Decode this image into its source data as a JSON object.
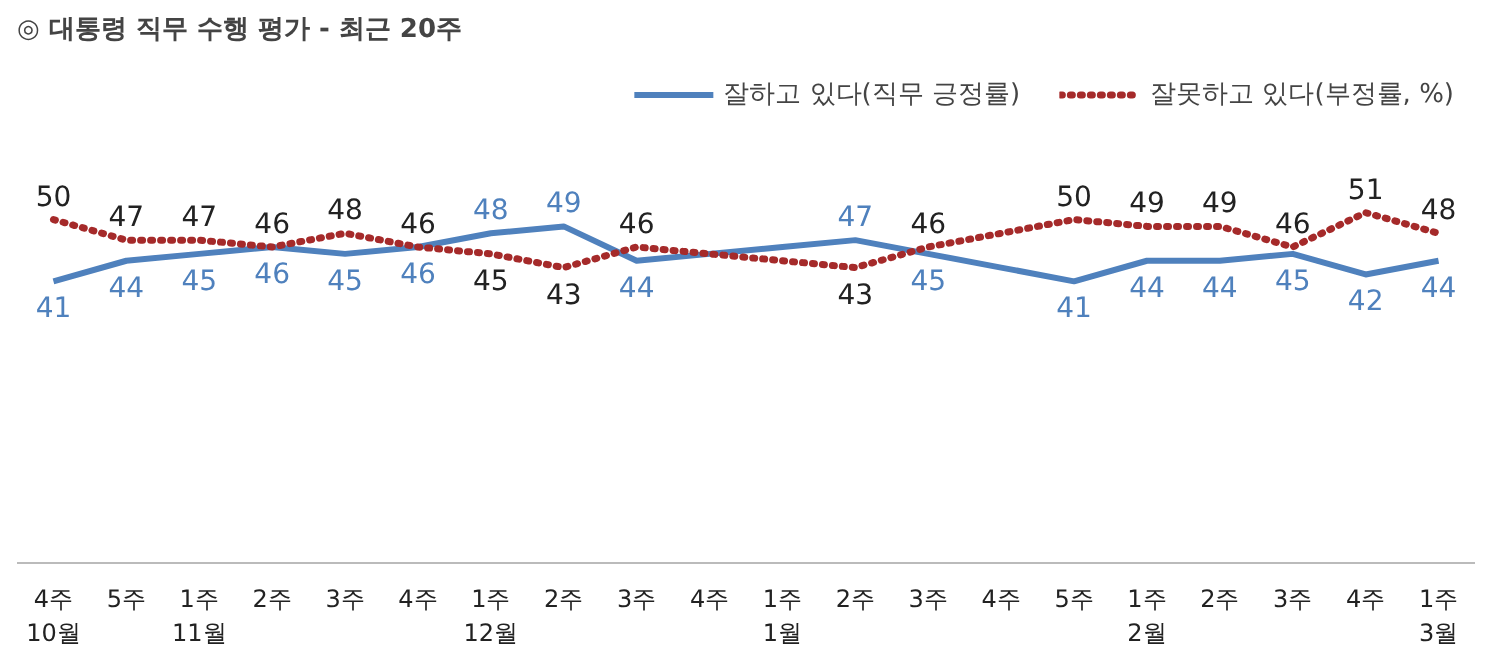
{
  "chart_data": {
    "type": "line",
    "title": "◎  대통령 직무 수행 평가 - 최근 20주",
    "categories": [
      "4주\n10월",
      "5주",
      "1주\n11월",
      "2주",
      "3주",
      "4주",
      "1주\n12월",
      "2주",
      "3주",
      "4주",
      "1주\n1월",
      "2주",
      "3주",
      "4주",
      "5주",
      "1주\n2월",
      "2주",
      "3주",
      "4주",
      "1주\n3월"
    ],
    "series": [
      {
        "name": "잘하고 있다(직무 긍정률)",
        "color": "#4f81bd",
        "line_style": "solid",
        "values": [
          41,
          44,
          45,
          46,
          45,
          46,
          48,
          49,
          44,
          45,
          46,
          47,
          45,
          43,
          41,
          44,
          44,
          45,
          42,
          44
        ],
        "value_labels": [
          "41",
          "44",
          "45",
          "46",
          "45",
          "46",
          "48",
          "49",
          "44",
          null,
          null,
          "47",
          "45",
          null,
          "41",
          "44",
          "44",
          "45",
          "42",
          "44"
        ]
      },
      {
        "name": "잘못하고 있다(부정률, %)",
        "color": "#a52a2a",
        "line_style": "dotted",
        "values": [
          50,
          47,
          47,
          46,
          48,
          46,
          45,
          43,
          46,
          45,
          44,
          43,
          46,
          48,
          50,
          49,
          49,
          46,
          51,
          48
        ],
        "value_labels": [
          "50",
          "47",
          "47",
          "46",
          "48",
          "46",
          "45",
          "43",
          "46",
          null,
          null,
          "43",
          "46",
          null,
          "50",
          "49",
          "49",
          "46",
          "51",
          "48"
        ]
      }
    ],
    "tick_labels": "x",
    "legend": "top right",
    "marker": "none"
  }
}
